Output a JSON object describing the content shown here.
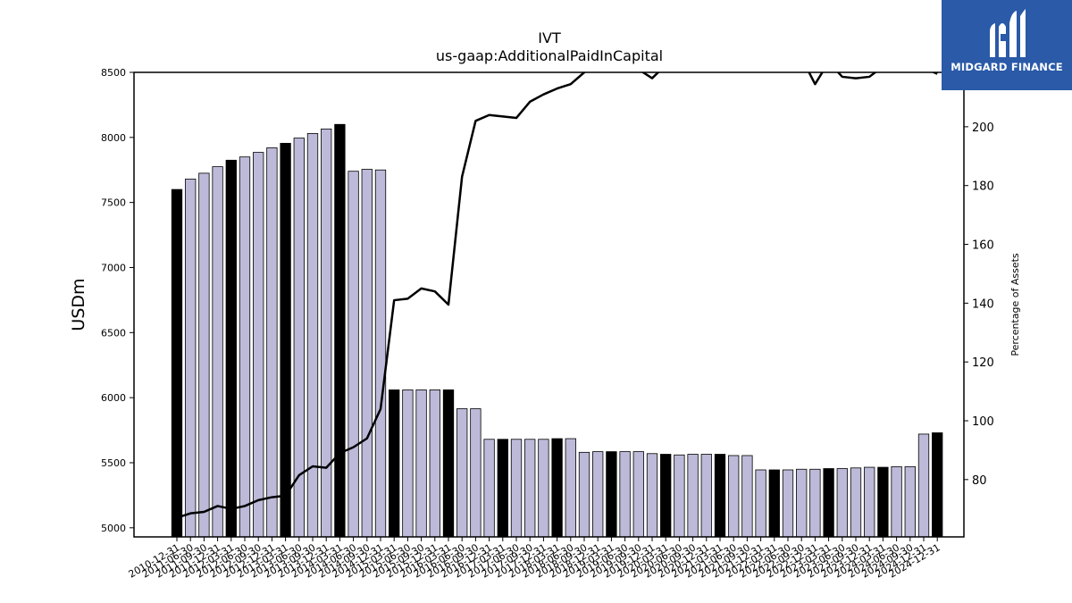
{
  "chart_data": {
    "type": "bar",
    "title": "IVT",
    "subtitle": "us-gaap:AdditionalPaidInCapital",
    "ylabel": "USDm",
    "y2label": "Percentage of Assets",
    "ylim": [
      4930,
      8500
    ],
    "y2lim": [
      60.5,
      218.5
    ],
    "yticks": [
      5000,
      5500,
      6000,
      6500,
      7000,
      7500,
      8000,
      8500
    ],
    "y2ticks": [
      80,
      100,
      120,
      140,
      160,
      180,
      200
    ],
    "categories": [
      "2010-12-31",
      "2011-03-31",
      "2011-06-30",
      "2011-09-30",
      "2011-12-31",
      "2012-03-31",
      "2012-06-30",
      "2012-09-30",
      "2012-12-31",
      "2013-03-31",
      "2013-06-30",
      "2013-09-30",
      "2013-12-31",
      "2014-03-31",
      "2014-06-30",
      "2014-09-30",
      "2014-12-31",
      "2015-03-31",
      "2015-06-30",
      "2015-09-30",
      "2015-12-31",
      "2016-03-31",
      "2016-06-30",
      "2016-09-30",
      "2016-12-31",
      "2017-03-31",
      "2017-06-30",
      "2017-09-30",
      "2017-12-31",
      "2018-03-31",
      "2018-06-30",
      "2018-09-30",
      "2018-12-31",
      "2019-03-31",
      "2019-06-30",
      "2019-09-30",
      "2019-12-31",
      "2020-03-31",
      "2020-06-30",
      "2020-09-30",
      "2020-12-31",
      "2021-03-31",
      "2021-06-30",
      "2021-09-30",
      "2021-12-31",
      "2022-03-31",
      "2022-06-30",
      "2022-09-30",
      "2022-12-31",
      "2023-03-31",
      "2023-06-30",
      "2023-09-30",
      "2023-12-31",
      "2024-03-31",
      "2024-06-30",
      "2024-09-30",
      "2024-12-31"
    ],
    "xticklabels": [
      "2010-12-31",
      "2011-06-30",
      "2011-09-30",
      "2011-12-31",
      "2012-03-31",
      "2012-06-30",
      "2012-09-30",
      "2012-12-31",
      "2013-03-31",
      "2013-06-30",
      "2013-09-30",
      "2013-12-31",
      "2014-03-31",
      "2014-06-30",
      "2014-09-30",
      "2014-12-31",
      "2015-03-31",
      "2015-06-30",
      "2015-09-30",
      "2015-12-31",
      "2016-03-31",
      "2016-06-30",
      "2016-09-30",
      "2016-12-31",
      "2017-03-31",
      "2017-06-30",
      "2017-09-30",
      "2017-12-31",
      "2018-03-31",
      "2018-06-30",
      "2018-09-30",
      "2018-12-31",
      "2019-03-31",
      "2019-06-30",
      "2019-09-30",
      "2019-12-31",
      "2020-03-31",
      "2020-06-30",
      "2020-09-30",
      "2020-12-31",
      "2021-03-31",
      "2021-06-30",
      "2021-09-30",
      "2021-12-31",
      "2022-03-31",
      "2022-06-30",
      "2022-09-30",
      "2022-12-31",
      "2023-03-31",
      "2023-06-30",
      "2023-09-30",
      "2023-12-31",
      "2024-03-31",
      "2024-06-30",
      "2024-09-30",
      "2024-12-31",
      "2024-12-31"
    ],
    "series": [
      {
        "type": "bar",
        "values": [
          7600,
          7680,
          7725,
          7775,
          7825,
          7850,
          7885,
          7920,
          7955,
          7995,
          8030,
          8065,
          8100,
          7740,
          7755,
          7750,
          6060,
          6060,
          6060,
          6060,
          6060,
          5915,
          5915,
          5680,
          5680,
          5680,
          5680,
          5680,
          5685,
          5685,
          5580,
          5585,
          5585,
          5585,
          5585,
          5570,
          5565,
          5560,
          5565,
          5565,
          5565,
          5555,
          5555,
          5445,
          5445,
          5445,
          5450,
          5450,
          5455,
          5455,
          5460,
          5465,
          5465,
          5470,
          5470,
          5720,
          5730
        ],
        "year_end_color": "#000000",
        "color": "#bcbad8",
        "edgecolor": "#000000"
      },
      {
        "type": "line",
        "axis": "right",
        "color": "#000000",
        "values": [
          67,
          68.5,
          69,
          71,
          70,
          71,
          73,
          74,
          74.5,
          81.5,
          84.5,
          84,
          89,
          91,
          94,
          104,
          141,
          141.5,
          145,
          144,
          139.5,
          183,
          202,
          204,
          203.5,
          203,
          208.5,
          211,
          213,
          214.5,
          218.5,
          222,
          225,
          221,
          219.5,
          216.5,
          221,
          223,
          222,
          222.5,
          221,
          221.5,
          222,
          220.5,
          220,
          221.5,
          223.5,
          214.5,
          222,
          217,
          216.5,
          217,
          220.5,
          222,
          223.5,
          220,
          218
        ]
      }
    ]
  },
  "logo": {
    "text": "MIDGARD FINANCE",
    "color": "#2a5aa8"
  }
}
